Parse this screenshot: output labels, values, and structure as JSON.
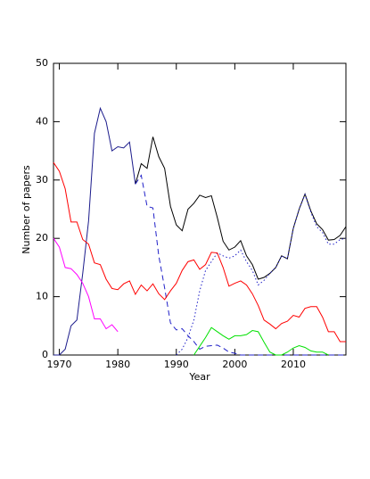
{
  "chart_data": {
    "type": "line",
    "x_label": "Year",
    "y_label": "Number of papers",
    "xlim": [
      1969,
      2019
    ],
    "ylim": [
      0,
      50
    ],
    "xticks": [
      1970,
      1980,
      1990,
      2000,
      2010
    ],
    "yticks": [
      0,
      10,
      20,
      30,
      40,
      50
    ],
    "x": [
      1969,
      1970,
      1971,
      1972,
      1973,
      1974,
      1975,
      1976,
      1977,
      1978,
      1979,
      1980,
      1981,
      1982,
      1983,
      1984,
      1985,
      1986,
      1987,
      1988,
      1989,
      1990,
      1991,
      1992,
      1993,
      1994,
      1995,
      1996,
      1997,
      1998,
      1999,
      2000,
      2001,
      2002,
      2003,
      2004,
      2005,
      2006,
      2007,
      2008,
      2009,
      2010,
      2011,
      2012,
      2013,
      2014,
      2015,
      2016,
      2017,
      2018,
      2019
    ],
    "series": [
      {
        "color": "#1c1c8c",
        "dash": "solid",
        "values": [
          0,
          0,
          1,
          5,
          6,
          14,
          23,
          38,
          42.3,
          40,
          35,
          35.7,
          35.5,
          36.5,
          29.3,
          null,
          null,
          null,
          null,
          null,
          null,
          null,
          null,
          null,
          null,
          null,
          null,
          null,
          null,
          null,
          null,
          null,
          null,
          null,
          null,
          null,
          null,
          null,
          null,
          null,
          null,
          null,
          null,
          null,
          null,
          null,
          null,
          null,
          null,
          null,
          null
        ]
      },
      {
        "color": "#000000",
        "dash": "solid",
        "values": [
          null,
          null,
          null,
          null,
          null,
          null,
          null,
          null,
          null,
          null,
          null,
          null,
          null,
          null,
          29.3,
          32.8,
          32,
          37.4,
          34,
          32,
          25.5,
          22.3,
          21.3,
          25,
          26,
          27.4,
          27,
          27.3,
          23.6,
          19.5,
          18,
          18.5,
          19.6,
          17,
          15.5,
          13,
          13.3,
          14,
          15,
          17,
          16.5,
          21.7,
          25,
          27.6,
          24.7,
          22.5,
          21.5,
          19.7,
          19.8,
          20.5,
          22
        ]
      },
      {
        "color": "#2020c8",
        "dash": "dashed",
        "values": [
          null,
          null,
          null,
          null,
          null,
          null,
          null,
          null,
          null,
          null,
          null,
          null,
          null,
          null,
          29.3,
          30.8,
          25.5,
          25.2,
          17,
          11.5,
          5.5,
          4.3,
          4.5,
          3.3,
          2.3,
          1,
          1.5,
          1.6,
          1.7,
          1.2,
          0.5,
          0.3,
          0,
          0,
          0,
          0,
          0,
          0,
          0,
          0,
          0,
          0,
          0,
          0,
          0,
          0,
          0,
          0,
          0,
          0,
          0
        ]
      },
      {
        "color": "#2020c8",
        "dash": "dotted",
        "values": [
          null,
          null,
          null,
          null,
          null,
          null,
          null,
          null,
          null,
          null,
          null,
          null,
          null,
          null,
          null,
          null,
          null,
          null,
          null,
          null,
          null,
          0,
          1,
          3,
          6,
          11,
          14.5,
          16,
          17.5,
          17,
          16.6,
          17,
          18,
          16,
          14.5,
          12,
          12.8,
          14,
          15,
          17,
          16.5,
          21.7,
          25,
          27.5,
          24.5,
          22,
          21,
          19,
          19,
          19.8,
          20
        ]
      },
      {
        "color": "#ff0000",
        "dash": "solid",
        "values": [
          33,
          31.5,
          28.5,
          22.8,
          22.8,
          19.8,
          19,
          15.8,
          15.5,
          13,
          11.4,
          11.2,
          12.2,
          12.7,
          10.4,
          12,
          11,
          12.2,
          10.5,
          9.5,
          11,
          12.3,
          14.5,
          16,
          16.3,
          14.7,
          15.5,
          17.6,
          17.5,
          15,
          11.8,
          12.3,
          12.7,
          12,
          10.5,
          8.5,
          6,
          5.3,
          4.5,
          5.4,
          5.8,
          6.8,
          6.5,
          8,
          8.3,
          8.3,
          6.5,
          4,
          4,
          2.3,
          2.3
        ]
      },
      {
        "color": "#ff00ff",
        "dash": "solid",
        "values": [
          20,
          18.5,
          15,
          14.8,
          13.8,
          12.3,
          10,
          6.2,
          6.2,
          4.5,
          5.2,
          4,
          null,
          null,
          null,
          null,
          null,
          null,
          null,
          null,
          null,
          null,
          null,
          null,
          null,
          null,
          null,
          null,
          null,
          null,
          null,
          null,
          null,
          null,
          null,
          null,
          null,
          null,
          null,
          null,
          null,
          null,
          null,
          null,
          null,
          null,
          null,
          null,
          null,
          null,
          null
        ]
      },
      {
        "color": "#00e000",
        "dash": "solid",
        "values": [
          null,
          null,
          null,
          null,
          null,
          null,
          null,
          null,
          null,
          null,
          null,
          null,
          null,
          null,
          null,
          null,
          null,
          null,
          null,
          null,
          null,
          null,
          null,
          null,
          0,
          1.5,
          3,
          4.7,
          4,
          3.3,
          2.7,
          3.3,
          3.3,
          3.5,
          4.2,
          4,
          2.2,
          0.5,
          0,
          0,
          0.5,
          1.2,
          1.6,
          1.3,
          0.7,
          0.5,
          0.5,
          0,
          null,
          null,
          null
        ]
      }
    ]
  }
}
